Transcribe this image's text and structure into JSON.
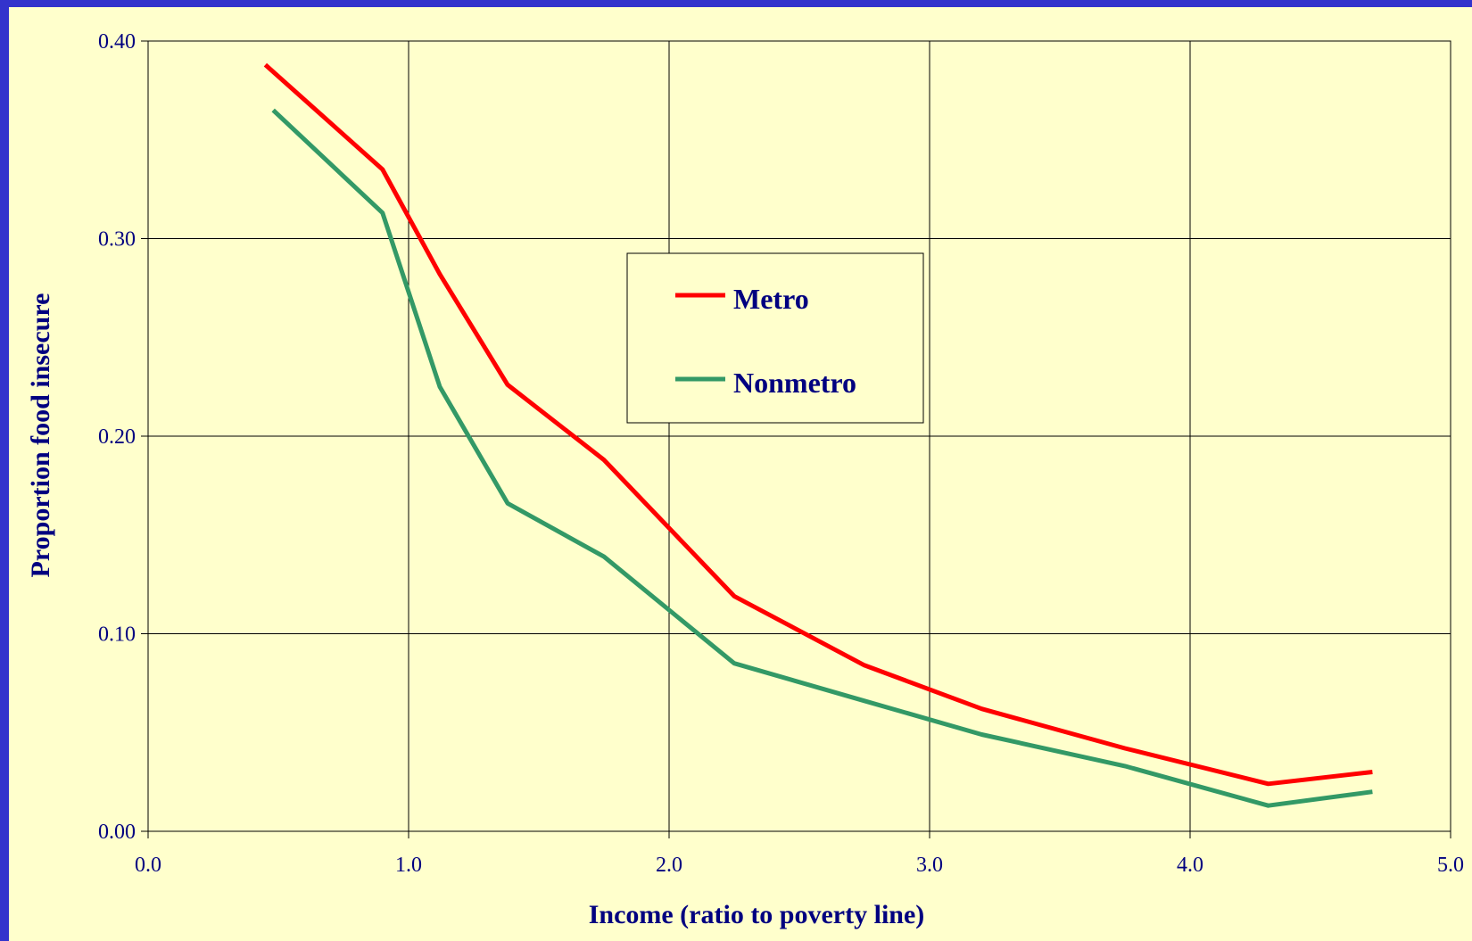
{
  "chart_data": {
    "type": "line",
    "title": "",
    "xlabel": "Income (ratio to poverty line)",
    "ylabel": "Proportion food insecure",
    "xlim": [
      0,
      5
    ],
    "ylim": [
      0,
      0.4
    ],
    "x_ticks": [
      "0.0",
      "1.0",
      "2.0",
      "3.0",
      "4.0",
      "5.0"
    ],
    "y_ticks": [
      "0.00",
      "0.10",
      "0.20",
      "0.30",
      "0.40"
    ],
    "grid": true,
    "legend_position": "center",
    "series": [
      {
        "name": "Metro",
        "color": "#ff0000",
        "points": [
          [
            0.45,
            0.388
          ],
          [
            0.9,
            0.335
          ],
          [
            1.12,
            0.282
          ],
          [
            1.38,
            0.226
          ],
          [
            1.75,
            0.188
          ],
          [
            2.25,
            0.119
          ],
          [
            2.75,
            0.084
          ],
          [
            3.2,
            0.062
          ],
          [
            3.75,
            0.042
          ],
          [
            4.3,
            0.024
          ],
          [
            4.7,
            0.03
          ]
        ]
      },
      {
        "name": "Nonmetro",
        "color": "#339966",
        "points": [
          [
            0.48,
            0.365
          ],
          [
            0.9,
            0.313
          ],
          [
            1.12,
            0.225
          ],
          [
            1.38,
            0.166
          ],
          [
            1.75,
            0.139
          ],
          [
            2.25,
            0.085
          ],
          [
            2.75,
            0.066
          ],
          [
            3.2,
            0.049
          ],
          [
            3.75,
            0.033
          ],
          [
            4.3,
            0.013
          ],
          [
            4.7,
            0.02
          ]
        ]
      }
    ]
  }
}
